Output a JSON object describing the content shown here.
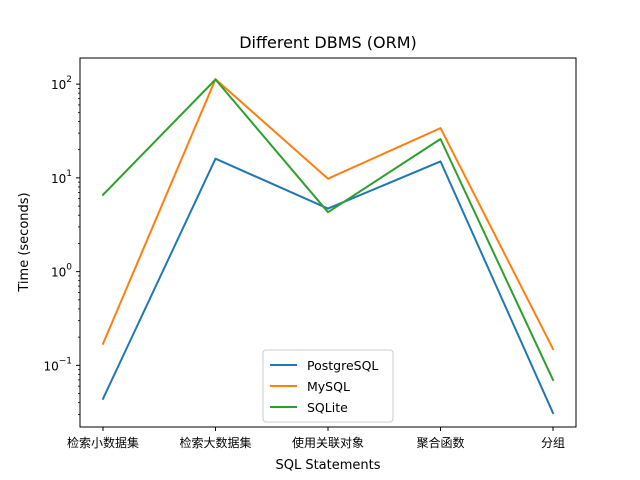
{
  "chart_data": {
    "type": "line",
    "title": "Different DBMS (ORM)",
    "xlabel": "SQL Statements",
    "ylabel": "Time (seconds)",
    "yscale": "log",
    "ylim": [
      0.022,
      190
    ],
    "categories": [
      "检索小数据集",
      "检索大数据集",
      "使用关联对象",
      "聚合函数",
      "分组"
    ],
    "y_ticks": [
      {
        "value": 0.1,
        "base": "10",
        "exp": "−1"
      },
      {
        "value": 1,
        "base": "10",
        "exp": "0"
      },
      {
        "value": 10,
        "base": "10",
        "exp": "1"
      },
      {
        "value": 100,
        "base": "10",
        "exp": "2"
      }
    ],
    "series": [
      {
        "name": "PostgreSQL",
        "color": "#1f77b4",
        "values": [
          0.044,
          16,
          4.7,
          15,
          0.031
        ]
      },
      {
        "name": "MySQL",
        "color": "#ff7f0e",
        "values": [
          0.17,
          113,
          9.8,
          34,
          0.15
        ]
      },
      {
        "name": "SQLite",
        "color": "#2ca02c",
        "values": [
          6.6,
          112,
          4.3,
          26,
          0.07
        ]
      }
    ],
    "legend_position": "lower center",
    "grid": false
  }
}
